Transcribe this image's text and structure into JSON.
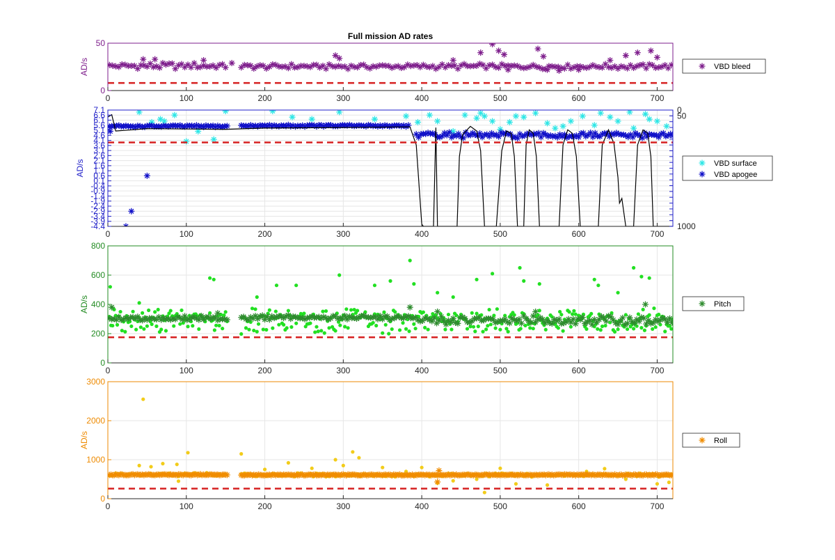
{
  "chart_data": [
    {
      "type": "scatter",
      "title": "Full mission AD rates",
      "ylabel": "AD/s",
      "xlim": [
        0,
        720
      ],
      "ylim": [
        0,
        50
      ],
      "xticks": [
        "0",
        "100",
        "200",
        "300",
        "400",
        "500",
        "600",
        "700"
      ],
      "yticks": [
        "0",
        "50"
      ],
      "axis_color": "#7e1e8c",
      "grid": false,
      "legend": "right",
      "threshold": 8,
      "series": [
        {
          "name": "VBD bleed",
          "color": "#7e1e8c",
          "marker": "asterisk",
          "segments": [
            {
              "from": 2,
              "to": 152,
              "base": 26,
              "amp": 4,
              "step": 4
            },
            {
              "from": 170,
              "to": 720,
              "base": 25.5,
              "amp": 3,
              "step": 4
            }
          ],
          "outliers": [
            [
              45,
              33
            ],
            [
              60,
              33
            ],
            [
              122,
              32
            ],
            [
              158,
              29
            ],
            [
              290,
              37
            ],
            [
              295,
              34
            ],
            [
              440,
              32
            ],
            [
              475,
              40
            ],
            [
              490,
              49
            ],
            [
              498,
              42
            ],
            [
              505,
              38
            ],
            [
              510,
              22
            ],
            [
              548,
              44
            ],
            [
              555,
              36
            ],
            [
              560,
              22
            ],
            [
              575,
              21
            ],
            [
              600,
              22
            ],
            [
              640,
              32
            ],
            [
              660,
              37
            ],
            [
              675,
              40
            ],
            [
              692,
              42
            ],
            [
              700,
              35
            ]
          ]
        }
      ]
    },
    {
      "type": "scatter",
      "ylabel": "AD/s",
      "xlim": [
        0,
        720
      ],
      "ylim": [
        -4.4,
        7.1
      ],
      "xticks": [
        "0",
        "100",
        "200",
        "300",
        "400",
        "500",
        "600",
        "700"
      ],
      "yticks": [
        "-4.4",
        "-3.9",
        "-3.4",
        "-2.9",
        "-2.4",
        "-1.9",
        "-1.4",
        "-0.9",
        "-0.4",
        "0.1",
        "0.6",
        "1.1",
        "1.6",
        "2.1",
        "2.6",
        "3.1",
        "3.6",
        "4.1",
        "4.6",
        "5.1",
        "5.6",
        "6.1",
        "6.6",
        "7.1"
      ],
      "y2ticks": [
        "0",
        "50",
        "1000"
      ],
      "y2lim": [
        0,
        1000
      ],
      "axis_color": "#1f1fc8",
      "grid": true,
      "legend": "right",
      "threshold": 3.9,
      "series": [
        {
          "name": "VBD surface",
          "color": "#2ee6e6",
          "marker": "asterisk",
          "points": [
            [
              40,
              6.9
            ],
            [
              56,
              5.9
            ],
            [
              67,
              6.2
            ],
            [
              72,
              6.0
            ],
            [
              85,
              6.6
            ],
            [
              100,
              4.0
            ],
            [
              115,
              5.0
            ],
            [
              135,
              4.2
            ],
            [
              150,
              7.0
            ],
            [
              210,
              7.0
            ],
            [
              235,
              6.4
            ],
            [
              260,
              6.2
            ],
            [
              295,
              6.9
            ],
            [
              340,
              6.2
            ],
            [
              380,
              6.5
            ],
            [
              395,
              5.9
            ],
            [
              410,
              6.6
            ],
            [
              420,
              6.0
            ],
            [
              440,
              5.0
            ],
            [
              455,
              6.6
            ],
            [
              470,
              6.3
            ],
            [
              475,
              6.8
            ],
            [
              480,
              6.5
            ],
            [
              490,
              6.0
            ],
            [
              500,
              5.2
            ],
            [
              512,
              5.9
            ],
            [
              520,
              6.5
            ],
            [
              530,
              6.4
            ],
            [
              545,
              6.8
            ],
            [
              560,
              5.8
            ],
            [
              570,
              5.3
            ],
            [
              580,
              5.5
            ],
            [
              590,
              6.0
            ],
            [
              605,
              6.5
            ],
            [
              620,
              5.6
            ],
            [
              628,
              6.8
            ],
            [
              640,
              6.4
            ],
            [
              650,
              6.0
            ],
            [
              665,
              6.9
            ],
            [
              670,
              5.3
            ],
            [
              685,
              6.7
            ],
            [
              690,
              6.2
            ],
            [
              700,
              6.0
            ],
            [
              712,
              5.5
            ]
          ]
        },
        {
          "name": "VBD apogee",
          "color": "#1010c8",
          "marker": "asterisk",
          "segments": [
            {
              "from": 2,
              "to": 152,
              "base": 5.5,
              "amp": 0.12,
              "step": 3
            },
            {
              "from": 170,
              "to": 385,
              "base": 5.55,
              "amp": 0.12,
              "step": 3
            },
            {
              "from": 393,
              "to": 720,
              "base": 4.6,
              "amp": 0.35,
              "step": 3
            }
          ],
          "outliers": [
            [
              3,
              5.0
            ],
            [
              50,
              0.6
            ],
            [
              30,
              -2.9
            ],
            [
              23,
              -4.4
            ]
          ]
        },
        {
          "name": "",
          "color": "#000000",
          "marker": "line",
          "axis": "right",
          "points": [
            [
              0,
              60
            ],
            [
              5,
              40
            ],
            [
              10,
              180
            ],
            [
              50,
              160
            ],
            [
              150,
              165
            ],
            [
              200,
              155
            ],
            [
              300,
              150
            ],
            [
              385,
              145
            ],
            [
              393,
              300
            ],
            [
              400,
              980
            ],
            [
              402,
              1000
            ],
            [
              415,
              1000
            ],
            [
              418,
              150
            ],
            [
              420,
              1000
            ],
            [
              445,
              1000
            ],
            [
              448,
              400
            ],
            [
              452,
              210
            ],
            [
              462,
              140
            ],
            [
              470,
              180
            ],
            [
              475,
              350
            ],
            [
              480,
              1000
            ],
            [
              495,
              1000
            ],
            [
              502,
              350
            ],
            [
              508,
              180
            ],
            [
              514,
              200
            ],
            [
              518,
              400
            ],
            [
              522,
              1000
            ],
            [
              530,
              1000
            ],
            [
              533,
              300
            ],
            [
              537,
              170
            ],
            [
              542,
              200
            ],
            [
              546,
              400
            ],
            [
              550,
              1000
            ],
            [
              575,
              1000
            ],
            [
              580,
              300
            ],
            [
              586,
              170
            ],
            [
              592,
              200
            ],
            [
              597,
              400
            ],
            [
              602,
              1000
            ],
            [
              625,
              1000
            ],
            [
              630,
              300
            ],
            [
              638,
              170
            ],
            [
              645,
              290
            ],
            [
              650,
              580
            ],
            [
              652,
              800
            ],
            [
              655,
              760
            ],
            [
              660,
              1000
            ],
            [
              670,
              1000
            ],
            [
              675,
              300
            ],
            [
              682,
              170
            ],
            [
              688,
              200
            ],
            [
              692,
              400
            ],
            [
              695,
              1000
            ],
            [
              720,
              1000
            ]
          ]
        }
      ]
    },
    {
      "type": "scatter",
      "ylabel": "AD/s",
      "xlim": [
        0,
        720
      ],
      "ylim": [
        0,
        800
      ],
      "xticks": [
        "0",
        "100",
        "200",
        "300",
        "400",
        "500",
        "600",
        "700"
      ],
      "yticks": [
        "0",
        "200",
        "400",
        "600",
        "800"
      ],
      "axis_color": "#228b22",
      "grid": true,
      "legend": "right",
      "threshold": 175,
      "series": [
        {
          "name": "",
          "color": "#22e022",
          "marker": "dot",
          "segments": [
            {
              "from": 2,
              "to": 152,
              "base": 290,
              "amp": 90,
              "step": 2
            },
            {
              "from": 170,
              "to": 720,
              "base": 285,
              "amp": 95,
              "step": 2
            }
          ],
          "outliers": [
            [
              3,
              520
            ],
            [
              40,
              410
            ],
            [
              130,
              580
            ],
            [
              135,
              570
            ],
            [
              190,
              450
            ],
            [
              215,
              530
            ],
            [
              240,
              530
            ],
            [
              295,
              600
            ],
            [
              340,
              530
            ],
            [
              360,
              560
            ],
            [
              385,
              700
            ],
            [
              390,
              540
            ],
            [
              420,
              480
            ],
            [
              440,
              450
            ],
            [
              470,
              570
            ],
            [
              490,
              610
            ],
            [
              525,
              650
            ],
            [
              530,
              560
            ],
            [
              550,
              540
            ],
            [
              620,
              570
            ],
            [
              625,
              530
            ],
            [
              650,
              480
            ],
            [
              670,
              650
            ],
            [
              680,
              590
            ],
            [
              690,
              580
            ],
            [
              720,
              300
            ]
          ]
        },
        {
          "name": "Pitch",
          "color": "#2e8b2e",
          "marker": "asterisk",
          "segments": [
            {
              "from": 2,
              "to": 152,
              "base": 305,
              "amp": 18,
              "step": 3
            },
            {
              "from": 170,
              "to": 390,
              "base": 310,
              "amp": 18,
              "step": 3
            },
            {
              "from": 392,
              "to": 720,
              "base": 290,
              "amp": 35,
              "step": 3
            }
          ],
          "outliers": [
            [
              5,
              380
            ],
            [
              140,
              340
            ],
            [
              385,
              380
            ],
            [
              420,
              350
            ],
            [
              545,
              350
            ],
            [
              685,
              400
            ]
          ]
        }
      ]
    },
    {
      "type": "scatter",
      "ylabel": "AD/s",
      "xlim": [
        0,
        720
      ],
      "ylim": [
        0,
        3000
      ],
      "xticks": [
        "0",
        "100",
        "200",
        "300",
        "400",
        "500",
        "600",
        "700"
      ],
      "yticks": [
        "0",
        "1000",
        "2000",
        "3000"
      ],
      "axis_color": "#ee8a00",
      "grid": true,
      "legend": "right",
      "threshold": 260,
      "series": [
        {
          "name": "",
          "color": "#f2cc1a",
          "marker": "dot",
          "segments": [
            {
              "from": 2,
              "to": 152,
              "base": 620,
              "amp": 60,
              "step": 4
            },
            {
              "from": 170,
              "to": 720,
              "base": 610,
              "amp": 60,
              "step": 4
            }
          ],
          "outliers": [
            [
              45,
              2550
            ],
            [
              40,
              850
            ],
            [
              55,
              820
            ],
            [
              70,
              900
            ],
            [
              88,
              880
            ],
            [
              102,
              1180
            ],
            [
              90,
              450
            ],
            [
              170,
              1150
            ],
            [
              200,
              750
            ],
            [
              230,
              920
            ],
            [
              260,
              780
            ],
            [
              290,
              1000
            ],
            [
              300,
              850
            ],
            [
              312,
              1200
            ],
            [
              320,
              1050
            ],
            [
              350,
              800
            ],
            [
              380,
              700
            ],
            [
              400,
              800
            ],
            [
              420,
              400
            ],
            [
              440,
              460
            ],
            [
              470,
              500
            ],
            [
              480,
              160
            ],
            [
              500,
              780
            ],
            [
              520,
              380
            ],
            [
              540,
              560
            ],
            [
              560,
              350
            ],
            [
              610,
              700
            ],
            [
              633,
              770
            ],
            [
              660,
              500
            ],
            [
              700,
              380
            ],
            [
              715,
              420
            ]
          ]
        },
        {
          "name": "Roll",
          "color": "#f08c00",
          "marker": "asterisk",
          "segments": [
            {
              "from": 2,
              "to": 152,
              "base": 615,
              "amp": 15,
              "step": 2
            },
            {
              "from": 170,
              "to": 720,
              "base": 610,
              "amp": 15,
              "step": 2
            }
          ],
          "outliers": [
            [
              420,
              430
            ],
            [
              422,
              720
            ]
          ]
        }
      ]
    }
  ]
}
